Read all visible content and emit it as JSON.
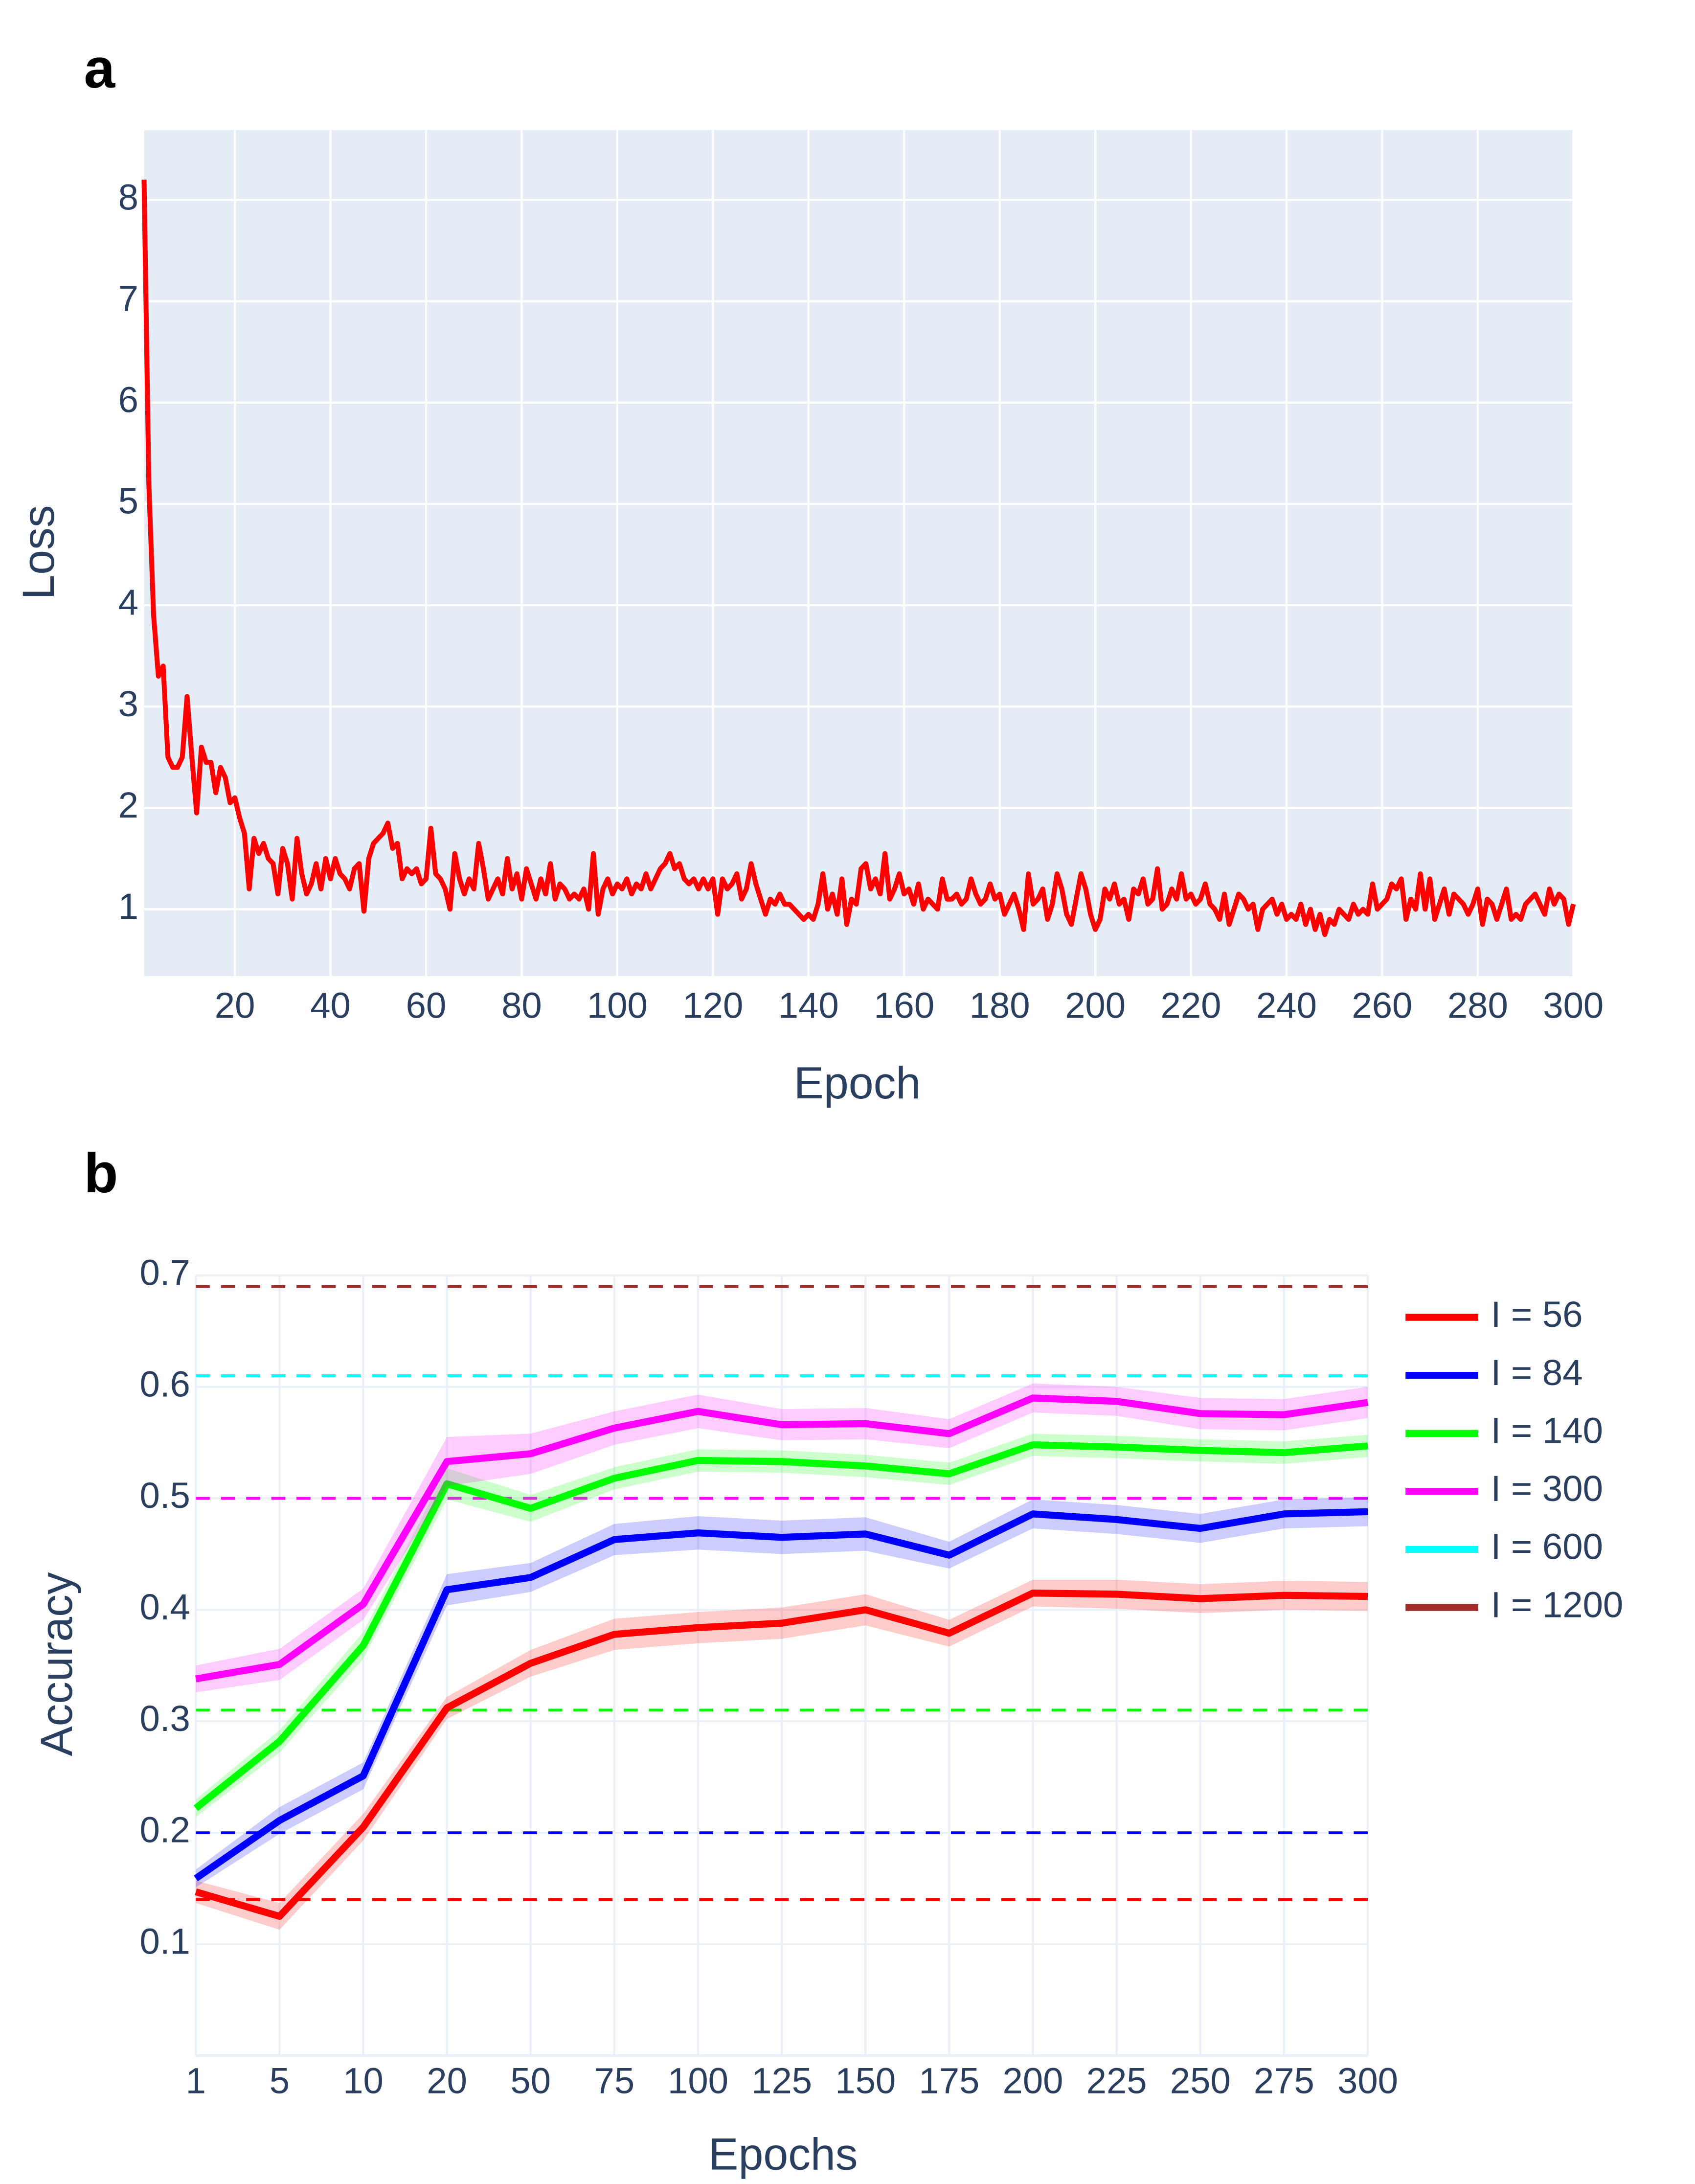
{
  "chart_data": [
    {
      "type": "line",
      "panel": "a",
      "xlabel": "Epoch",
      "ylabel": "Loss",
      "color": "#ff0000",
      "x": [
        1,
        2,
        3,
        4,
        5,
        6,
        7,
        8,
        9,
        10,
        11,
        12,
        13,
        14,
        15,
        16,
        17,
        18,
        19,
        20,
        21,
        22,
        23,
        24,
        25,
        26,
        27,
        28,
        29,
        30,
        31,
        32,
        33,
        34,
        35,
        36,
        37,
        38,
        39,
        40,
        41,
        42,
        43,
        44,
        45,
        46,
        47,
        48,
        49,
        50,
        51,
        52,
        53,
        54,
        55,
        56,
        57,
        58,
        59,
        60,
        61,
        62,
        63,
        64,
        65,
        66,
        67,
        68,
        69,
        70,
        71,
        72,
        73,
        74,
        75,
        76,
        77,
        78,
        79,
        80,
        81,
        82,
        83,
        84,
        85,
        86,
        87,
        88,
        89,
        90,
        91,
        92,
        93,
        94,
        95,
        96,
        97,
        98,
        99,
        100,
        101,
        102,
        103,
        104,
        105,
        106,
        107,
        108,
        109,
        110,
        111,
        112,
        113,
        114,
        115,
        116,
        117,
        118,
        119,
        120,
        121,
        122,
        123,
        124,
        125,
        126,
        127,
        128,
        129,
        130,
        131,
        132,
        133,
        134,
        135,
        136,
        137,
        138,
        139,
        140,
        141,
        142,
        143,
        144,
        145,
        146,
        147,
        148,
        149,
        150,
        151,
        152,
        153,
        154,
        155,
        156,
        157,
        158,
        159,
        160,
        161,
        162,
        163,
        164,
        165,
        166,
        167,
        168,
        169,
        170,
        171,
        172,
        173,
        174,
        175,
        176,
        177,
        178,
        179,
        180,
        181,
        182,
        183,
        184,
        185,
        186,
        187,
        188,
        189,
        190,
        191,
        192,
        193,
        194,
        195,
        196,
        197,
        198,
        199,
        200,
        201,
        202,
        203,
        204,
        205,
        206,
        207,
        208,
        209,
        210,
        211,
        212,
        213,
        214,
        215,
        216,
        217,
        218,
        219,
        220,
        221,
        222,
        223,
        224,
        225,
        226,
        227,
        228,
        229,
        230,
        231,
        232,
        233,
        234,
        235,
        236,
        237,
        238,
        239,
        240,
        241,
        242,
        243,
        244,
        245,
        246,
        247,
        248,
        249,
        250,
        251,
        252,
        253,
        254,
        255,
        256,
        257,
        258,
        259,
        260,
        261,
        262,
        263,
        264,
        265,
        266,
        267,
        268,
        269,
        270,
        271,
        272,
        273,
        274,
        275,
        276,
        277,
        278,
        279,
        280,
        281,
        282,
        283,
        284,
        285,
        286,
        287,
        288,
        289,
        290,
        291,
        292,
        293,
        294,
        295,
        296,
        297,
        298,
        299,
        300
      ],
      "values": [
        8.2,
        5.2,
        3.9,
        3.3,
        3.4,
        2.5,
        2.4,
        2.4,
        2.5,
        3.1,
        2.5,
        1.95,
        2.6,
        2.45,
        2.45,
        2.15,
        2.4,
        2.3,
        2.05,
        2.1,
        1.9,
        1.75,
        1.2,
        1.7,
        1.55,
        1.65,
        1.5,
        1.45,
        1.15,
        1.6,
        1.45,
        1.1,
        1.7,
        1.35,
        1.15,
        1.25,
        1.45,
        1.2,
        1.5,
        1.3,
        1.5,
        1.35,
        1.3,
        1.2,
        1.4,
        1.45,
        0.98,
        1.5,
        1.65,
        1.7,
        1.75,
        1.85,
        1.6,
        1.65,
        1.3,
        1.4,
        1.35,
        1.4,
        1.25,
        1.3,
        1.8,
        1.35,
        1.3,
        1.2,
        1.0,
        1.55,
        1.3,
        1.15,
        1.3,
        1.2,
        1.65,
        1.4,
        1.1,
        1.2,
        1.3,
        1.15,
        1.5,
        1.2,
        1.35,
        1.1,
        1.4,
        1.25,
        1.1,
        1.3,
        1.15,
        1.45,
        1.1,
        1.25,
        1.2,
        1.1,
        1.15,
        1.1,
        1.2,
        1.0,
        1.55,
        0.95,
        1.2,
        1.3,
        1.15,
        1.25,
        1.2,
        1.3,
        1.15,
        1.25,
        1.2,
        1.35,
        1.2,
        1.3,
        1.4,
        1.45,
        1.55,
        1.4,
        1.45,
        1.3,
        1.25,
        1.3,
        1.2,
        1.3,
        1.2,
        1.3,
        0.95,
        1.3,
        1.2,
        1.25,
        1.35,
        1.1,
        1.2,
        1.45,
        1.25,
        1.1,
        0.95,
        1.1,
        1.05,
        1.15,
        1.05,
        1.05,
        1.0,
        0.95,
        0.9,
        0.95,
        0.9,
        1.05,
        1.35,
        1.0,
        1.15,
        0.95,
        1.3,
        0.85,
        1.1,
        1.05,
        1.4,
        1.45,
        1.2,
        1.3,
        1.15,
        1.55,
        1.1,
        1.2,
        1.35,
        1.15,
        1.2,
        1.05,
        1.25,
        1.0,
        1.1,
        1.05,
        1.0,
        1.3,
        1.1,
        1.1,
        1.15,
        1.05,
        1.1,
        1.3,
        1.15,
        1.05,
        1.1,
        1.25,
        1.1,
        1.15,
        0.95,
        1.05,
        1.15,
        1.0,
        0.8,
        1.35,
        1.05,
        1.1,
        1.2,
        0.9,
        1.05,
        1.35,
        1.2,
        0.95,
        0.85,
        1.1,
        1.35,
        1.2,
        0.95,
        0.8,
        0.9,
        1.2,
        1.1,
        1.25,
        1.05,
        1.1,
        0.9,
        1.2,
        1.15,
        1.3,
        1.05,
        1.1,
        1.4,
        1.0,
        1.05,
        1.2,
        1.1,
        1.35,
        1.1,
        1.15,
        1.05,
        1.1,
        1.25,
        1.05,
        1.0,
        0.9,
        1.15,
        0.85,
        1.0,
        1.15,
        1.1,
        1.0,
        1.05,
        0.8,
        1.0,
        1.05,
        1.1,
        0.95,
        1.05,
        0.9,
        0.95,
        0.9,
        1.05,
        0.85,
        1.0,
        0.8,
        0.95,
        0.75,
        0.9,
        0.85,
        1.0,
        0.95,
        0.9,
        1.05,
        0.95,
        1.0,
        0.95,
        1.25,
        1.0,
        1.05,
        1.1,
        1.25,
        1.2,
        1.3,
        0.9,
        1.1,
        1.0,
        1.35,
        1.0,
        1.3,
        0.9,
        1.05,
        1.2,
        0.95,
        1.15,
        1.1,
        1.05,
        0.95,
        1.05,
        1.2,
        0.85,
        1.1,
        1.05,
        0.9,
        1.05,
        1.2,
        0.9,
        0.95,
        0.9,
        1.05,
        1.1,
        1.15,
        1.05,
        0.95,
        1.2,
        1.05,
        1.15,
        1.1,
        0.85,
        1.05
      ],
      "xlim": [
        1,
        300
      ],
      "xticks": [
        20,
        40,
        60,
        80,
        100,
        120,
        140,
        160,
        180,
        200,
        220,
        240,
        260,
        280,
        300
      ],
      "ylim": [
        0.34,
        8.69
      ],
      "yticks": [
        1,
        2,
        3,
        4,
        5,
        6,
        7,
        8
      ],
      "grid": true
    },
    {
      "type": "line",
      "panel": "b",
      "xlabel": "Epochs",
      "ylabel": "Accuracy",
      "categories": [
        "1",
        "5",
        "10",
        "20",
        "50",
        "75",
        "100",
        "125",
        "150",
        "175",
        "200",
        "225",
        "250",
        "275",
        "300"
      ],
      "ylim": [
        0,
        0.7
      ],
      "yticks": [
        0.1,
        0.2,
        0.3,
        0.4,
        0.5,
        0.6,
        0.7
      ],
      "grid": true,
      "legend": "right",
      "series": [
        {
          "name": "I = 56",
          "color": "#ff0000",
          "baseline": 0.14,
          "values": [
            0.147,
            0.125,
            0.205,
            0.312,
            0.352,
            0.378,
            0.384,
            0.388,
            0.4,
            0.379,
            0.415,
            0.414,
            0.41,
            0.413,
            0.412
          ],
          "errors": [
            0.01,
            0.012,
            0.012,
            0.01,
            0.012,
            0.014,
            0.014,
            0.014,
            0.014,
            0.012,
            0.012,
            0.013,
            0.013,
            0.013,
            0.013
          ]
        },
        {
          "name": "I = 84",
          "color": "#0000ff",
          "baseline": 0.2,
          "values": [
            0.159,
            0.211,
            0.251,
            0.418,
            0.429,
            0.463,
            0.469,
            0.465,
            0.468,
            0.449,
            0.486,
            0.481,
            0.473,
            0.486,
            0.488
          ],
          "errors": [
            0.008,
            0.012,
            0.012,
            0.014,
            0.013,
            0.014,
            0.015,
            0.015,
            0.015,
            0.012,
            0.013,
            0.013,
            0.013,
            0.013,
            0.013
          ]
        },
        {
          "name": "I = 140",
          "color": "#00ff00",
          "baseline": 0.31,
          "values": [
            0.222,
            0.282,
            0.368,
            0.513,
            0.491,
            0.518,
            0.534,
            0.533,
            0.529,
            0.522,
            0.548,
            0.546,
            0.543,
            0.541,
            0.547
          ],
          "errors": [
            0.008,
            0.01,
            0.012,
            0.014,
            0.012,
            0.01,
            0.01,
            0.01,
            0.01,
            0.01,
            0.01,
            0.01,
            0.01,
            0.01,
            0.01
          ]
        },
        {
          "name": "I = 300",
          "color": "#ff00ff",
          "baseline": 0.5,
          "values": [
            0.338,
            0.351,
            0.405,
            0.533,
            0.54,
            0.563,
            0.578,
            0.566,
            0.567,
            0.558,
            0.59,
            0.587,
            0.576,
            0.575,
            0.586
          ],
          "errors": [
            0.012,
            0.014,
            0.014,
            0.022,
            0.018,
            0.015,
            0.015,
            0.014,
            0.014,
            0.013,
            0.013,
            0.013,
            0.014,
            0.014,
            0.014
          ]
        },
        {
          "name": "I = 600",
          "color": "#00ffff",
          "baseline": 0.61
        },
        {
          "name": "I = 1200",
          "color": "#a52a2a",
          "baseline": 0.69
        }
      ]
    }
  ]
}
